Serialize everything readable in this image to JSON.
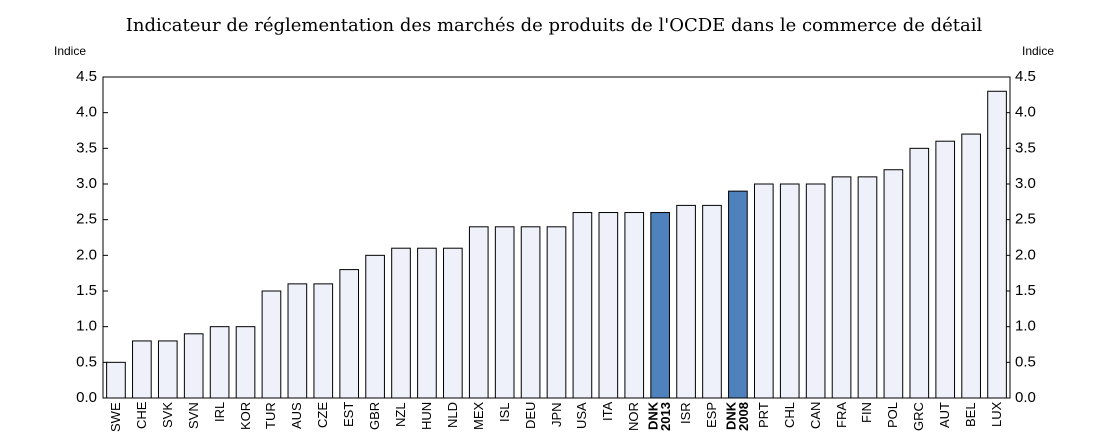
{
  "chart_data": {
    "type": "bar",
    "title": "Indicateur de réglementation des marchés de produits de l'OCDE dans le commerce de détail",
    "y_label": "Indice",
    "y2_label": "Indice",
    "categories": [
      "SWE",
      "CHE",
      "SVK",
      "SVN",
      "IRL",
      "KOR",
      "TUR",
      "AUS",
      "CZE",
      "EST",
      "GBR",
      "NZL",
      "HUN",
      "NLD",
      "MEX",
      "ISL",
      "DEU",
      "JPN",
      "USA",
      "ITA",
      "NOR",
      "DNK\n2013",
      "ISR",
      "ESP",
      "DNK\n2008",
      "PRT",
      "CHL",
      "CAN",
      "FRA",
      "FIN",
      "POL",
      "GRC",
      "AUT",
      "BEL",
      "LUX"
    ],
    "values": [
      0.5,
      0.8,
      0.8,
      0.9,
      1.0,
      1.0,
      1.5,
      1.6,
      1.6,
      1.8,
      2.0,
      2.1,
      2.1,
      2.1,
      2.4,
      2.4,
      2.4,
      2.4,
      2.6,
      2.6,
      2.6,
      2.6,
      2.7,
      2.7,
      2.9,
      3.0,
      3.0,
      3.0,
      3.1,
      3.1,
      3.2,
      3.5,
      3.6,
      3.7,
      4.3
    ],
    "color": "#eef0fa",
    "colors": [
      "#eef0fa",
      "#eef0fa",
      "#eef0fa",
      "#eef0fa",
      "#eef0fa",
      "#eef0fa",
      "#eef0fa",
      "#eef0fa",
      "#eef0fa",
      "#eef0fa",
      "#eef0fa",
      "#eef0fa",
      "#eef0fa",
      "#eef0fa",
      "#eef0fa",
      "#eef0fa",
      "#eef0fa",
      "#eef0fa",
      "#eef0fa",
      "#eef0fa",
      "#eef0fa",
      "#4f81bd",
      "#eef0fa",
      "#eef0fa",
      "#4f81bd",
      "#eef0fa",
      "#eef0fa",
      "#eef0fa",
      "#eef0fa",
      "#eef0fa",
      "#eef0fa",
      "#eef0fa",
      "#eef0fa",
      "#eef0fa",
      "#eef0fa"
    ],
    "ylim": [
      0,
      4.5
    ],
    "yticks": [
      {
        "value": 0,
        "label": "0.0"
      },
      {
        "value": 0.5,
        "label": "0.5"
      },
      {
        "value": 1,
        "label": "1.0"
      },
      {
        "value": 1.5,
        "label": "1.5"
      },
      {
        "value": 2,
        "label": "2.0"
      },
      {
        "value": 2.5,
        "label": "2.5"
      },
      {
        "value": 3,
        "label": "3.0"
      },
      {
        "value": 3.5,
        "label": "3.5"
      },
      {
        "value": 4,
        "label": "4.0"
      },
      {
        "value": 4.5,
        "label": "4.5"
      }
    ],
    "y2lim": [
      0,
      4.5
    ],
    "y2ticks": [
      {
        "value": 0,
        "label": "0.0"
      },
      {
        "value": 0.5,
        "label": "0.5"
      },
      {
        "value": 1,
        "label": "1.0"
      },
      {
        "value": 1.5,
        "label": "1.5"
      },
      {
        "value": 2,
        "label": "2.0"
      },
      {
        "value": 2.5,
        "label": "2.5"
      },
      {
        "value": 3,
        "label": "3.0"
      },
      {
        "value": 3.5,
        "label": "3.5"
      },
      {
        "value": 4,
        "label": "4.0"
      },
      {
        "value": 4.5,
        "label": "4.5"
      }
    ],
    "grid": false
  }
}
